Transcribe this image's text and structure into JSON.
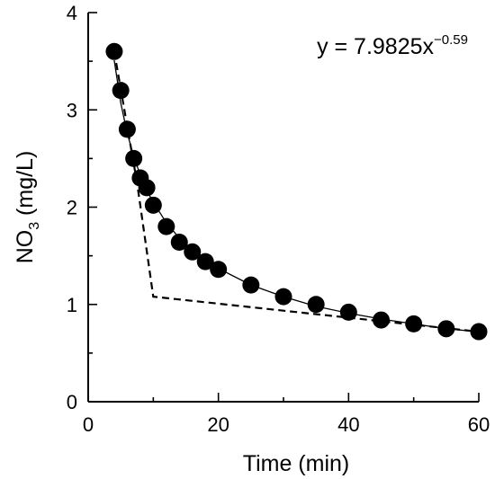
{
  "chart_data": {
    "type": "scatter",
    "title": "",
    "xlabel": "Time (min)",
    "ylabel": {
      "main": "NO",
      "sub": "3",
      "rest": " (mg/L)"
    },
    "xlim": [
      0,
      60
    ],
    "ylim": [
      0,
      4
    ],
    "xticks": [
      0,
      20,
      40,
      60
    ],
    "yticks": [
      0,
      1,
      2,
      3,
      4
    ],
    "grid": false,
    "legend": "none",
    "annotation": {
      "base": "y = 7.9825x",
      "exponent": "−0.59"
    },
    "series": [
      {
        "kind": "points",
        "marker": "filled-circle",
        "color": "#000000",
        "x": [
          4,
          5,
          6,
          7,
          8,
          9,
          10,
          12,
          14,
          16,
          18,
          20,
          25,
          30,
          35,
          40,
          45,
          50,
          55,
          60
        ],
        "y": [
          3.6,
          3.2,
          2.8,
          2.5,
          2.3,
          2.2,
          2.02,
          1.8,
          1.64,
          1.54,
          1.44,
          1.36,
          1.2,
          1.08,
          1.0,
          0.92,
          0.84,
          0.8,
          0.75,
          0.72
        ]
      },
      {
        "kind": "fit-curve",
        "style": "solid",
        "color": "#000000",
        "x": [
          4,
          5,
          6,
          7,
          8,
          9,
          10,
          12,
          14,
          16,
          18,
          20,
          25,
          30,
          35,
          40,
          45,
          50,
          55,
          60
        ],
        "y": [
          3.51,
          3.07,
          2.76,
          2.52,
          2.33,
          2.17,
          2.05,
          1.84,
          1.68,
          1.56,
          1.46,
          1.37,
          1.2,
          1.08,
          0.98,
          0.91,
          0.85,
          0.8,
          0.75,
          0.72
        ]
      },
      {
        "kind": "piecewise",
        "style": "dashed",
        "color": "#000000",
        "x": [
          4,
          7.5,
          10,
          60
        ],
        "y": [
          3.6,
          2.25,
          1.08,
          0.72
        ]
      }
    ]
  }
}
